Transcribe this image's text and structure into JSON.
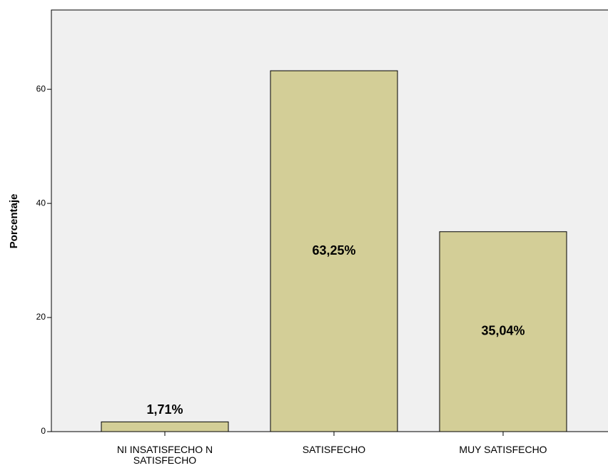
{
  "chart_data": {
    "type": "bar",
    "categories": [
      "NI INSATISFECHO N SATISFECHO",
      "SATISFECHO",
      "MUY SATISFECHO"
    ],
    "values": [
      1.71,
      63.25,
      35.04
    ],
    "value_labels": [
      "1,71%",
      "63,25%",
      "35,04%"
    ],
    "color": "#d3ce97",
    "y_label": "Porcentaje",
    "ylim": [
      0,
      73.9
    ],
    "yticks": [
      0,
      20,
      40,
      60
    ],
    "grid": false
  }
}
